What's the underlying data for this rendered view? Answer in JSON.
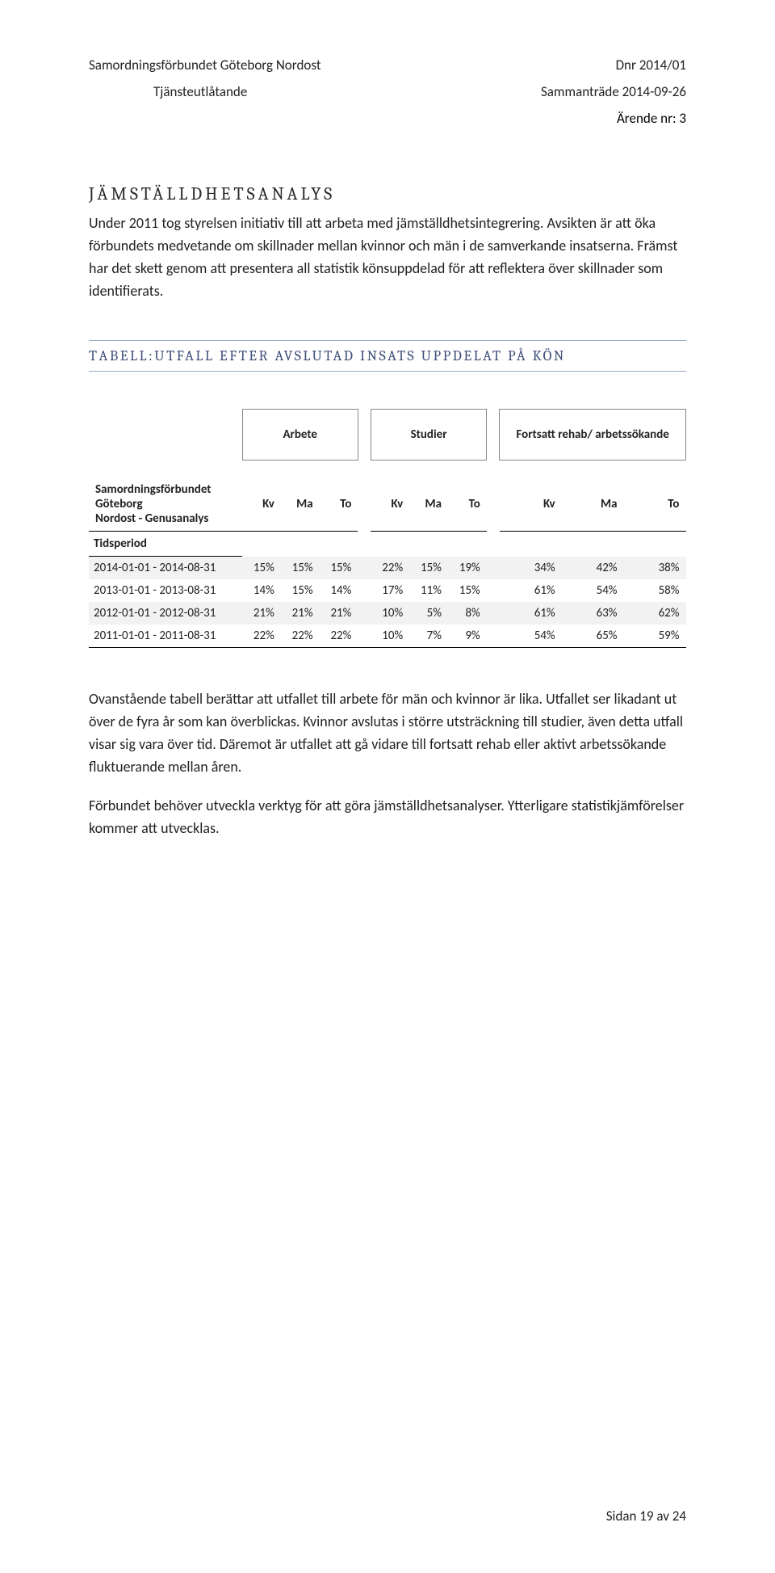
{
  "header": {
    "org": "Samordningsförbundet Göteborg Nordost",
    "dnr": "Dnr 2014/01",
    "doc_type": "Tjänsteutlåtande",
    "meeting": "Sammanträde 2014-09-26",
    "matter": "Ärende nr: 3"
  },
  "section1": {
    "heading_first": "J",
    "heading_rest": "ÄMSTÄLLDHETSANALYS",
    "para1": "Under 2011 tog styrelsen initiativ till att arbeta med jämställdhetsintegrering. Avsikten är att öka förbundets medvetande om skillnader mellan kvinnor och män i de samverkande insatserna. Främst har det skett genom att presentera all statistik könsuppdelad för att reflektera över skillnader som identifierats."
  },
  "table_label": {
    "lead1": "T",
    "lead1_rest": "ABELL",
    "sep": ": ",
    "lead2": "U",
    "lead2_rest": "TFALL EFTER AVSLUTAD INSATS UPPDELAT PÅ KÖN"
  },
  "table": {
    "group_headers": [
      "Arbete",
      "Studier",
      "Fortsatt rehab/ arbetssökande"
    ],
    "row_title_line1": "Samordningsförbundet Göteborg",
    "row_title_line2": "Nordost - Genusanalys",
    "sub_cols": [
      "Kv",
      "Ma",
      "To"
    ],
    "tids_label": "Tidsperiod",
    "rows": [
      {
        "period": "2014-01-01 - 2014-08-31",
        "vals": [
          "15%",
          "15%",
          "15%",
          "22%",
          "15%",
          "19%",
          "34%",
          "42%",
          "38%"
        ],
        "shade": true
      },
      {
        "period": "2013-01-01 - 2013-08-31",
        "vals": [
          "14%",
          "15%",
          "14%",
          "17%",
          "11%",
          "15%",
          "61%",
          "54%",
          "58%"
        ],
        "shade": false
      },
      {
        "period": "2012-01-01 - 2012-08-31",
        "vals": [
          "21%",
          "21%",
          "21%",
          "10%",
          "5%",
          "8%",
          "61%",
          "63%",
          "62%"
        ],
        "shade": true
      },
      {
        "period": "2011-01-01 - 2011-08-31",
        "vals": [
          "22%",
          "22%",
          "22%",
          "10%",
          "7%",
          "9%",
          "54%",
          "65%",
          "59%"
        ],
        "shade": false
      }
    ]
  },
  "after_table": {
    "para1": "Ovanstående tabell berättar att utfallet till arbete för män och kvinnor är lika. Utfallet ser likadant ut över de fyra år som kan överblickas. Kvinnor avslutas i större utsträckning till studier, även detta utfall visar sig vara över tid. Däremot är utfallet att gå vidare till fortsatt rehab eller aktivt arbetssökande fluktuerande mellan åren.",
    "para2": "Förbundet behöver utveckla verktyg för att göra jämställdhetsanalyser. Ytterligare statistikjämförelser kommer att utvecklas."
  },
  "footer": {
    "text": "Sidan 19 av 24"
  },
  "style": {
    "page_bg": "#ffffff",
    "text_color": "#222222",
    "rule_color": "#96a9cf",
    "heading_color": "#40507a",
    "shade_color": "#f2f2f2",
    "border_color": "#000000",
    "box_border": "#888888",
    "body_fontsize": 18,
    "heading_fontsize": 22,
    "table_fontsize": 15
  }
}
